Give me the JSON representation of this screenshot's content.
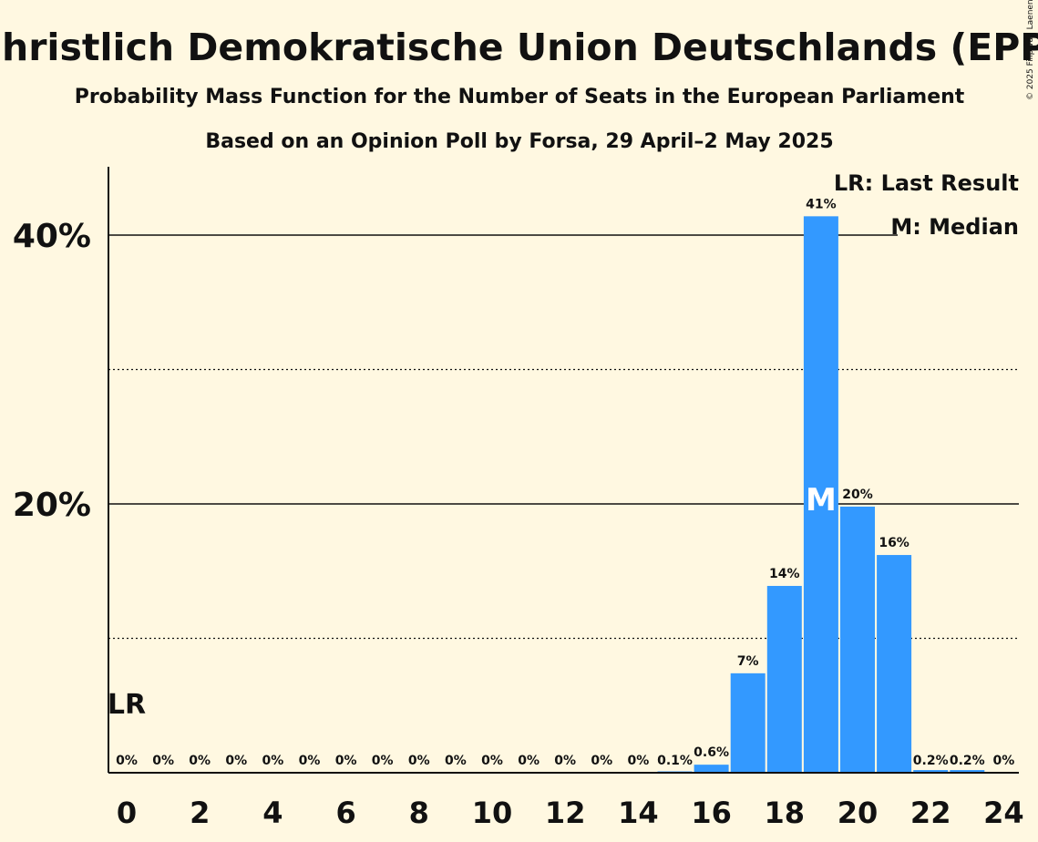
{
  "chart_data": {
    "type": "bar",
    "title": "Christlich Demokratische Union Deutschlands (EPP)",
    "subtitle": "Probability Mass Function for the Number of Seats in the European Parliament",
    "subtitle2": "Based on an Opinion Poll by Forsa, 29 April–2 May 2025",
    "copyright": "© 2025 Filip van Laenen",
    "categories": [
      0,
      1,
      2,
      3,
      4,
      5,
      6,
      7,
      8,
      9,
      10,
      11,
      12,
      13,
      14,
      15,
      16,
      17,
      18,
      19,
      20,
      21,
      22,
      23,
      24
    ],
    "values": [
      0,
      0,
      0,
      0,
      0,
      0,
      0,
      0,
      0,
      0,
      0,
      0,
      0,
      0,
      0,
      0.1,
      0.6,
      7.4,
      13.9,
      41.4,
      19.8,
      16.2,
      0.2,
      0.2,
      0
    ],
    "value_labels": [
      "0%",
      "0%",
      "0%",
      "0%",
      "0%",
      "0%",
      "0%",
      "0%",
      "0%",
      "0%",
      "0%",
      "0%",
      "0%",
      "0%",
      "0%",
      "0.1%",
      "0.6%",
      "7%",
      "14%",
      "41%",
      "20%",
      "16%",
      "0.2%",
      "0.2%",
      "0%"
    ],
    "x_tick_labels": [
      "0",
      "2",
      "4",
      "6",
      "8",
      "10",
      "12",
      "14",
      "16",
      "18",
      "20",
      "22",
      "24"
    ],
    "y_tick_labels": [
      "20%",
      "40%"
    ],
    "ylim": [
      0,
      45
    ],
    "last_result_seat": 0,
    "last_result_label": "LR",
    "median_seat": 19,
    "median_label": "M",
    "legend": [
      "LR: Last Result",
      "M: Median"
    ],
    "colors": {
      "bar": "#3399ff",
      "background": "#fff8e1",
      "text": "#111111"
    }
  }
}
